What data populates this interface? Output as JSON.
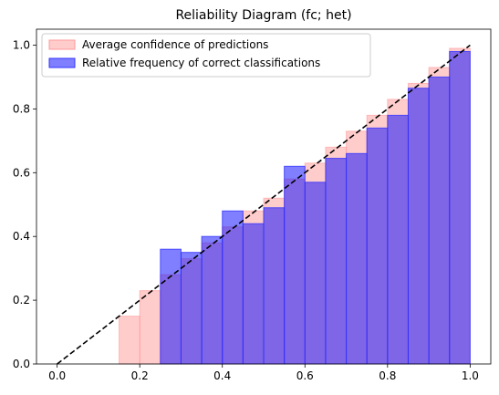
{
  "chart_data": {
    "type": "bar",
    "title": "Reliability Diagram (fc; het)",
    "xlabel": "",
    "ylabel": "",
    "xlim": [
      -0.05,
      1.05
    ],
    "ylim": [
      0,
      1.05
    ],
    "grid": false,
    "legend_position": "top-left",
    "bin_width": 0.05,
    "bin_left_edges": [
      0.0,
      0.05,
      0.1,
      0.15,
      0.2,
      0.25,
      0.3,
      0.35,
      0.4,
      0.45,
      0.5,
      0.55,
      0.6,
      0.65,
      0.7,
      0.75,
      0.8,
      0.85,
      0.9,
      0.95
    ],
    "x_ticks": [
      0.0,
      0.2,
      0.4,
      0.6,
      0.8,
      1.0
    ],
    "x_tick_labels": [
      "0.0",
      "0.2",
      "0.4",
      "0.6",
      "0.8",
      "1.0"
    ],
    "y_ticks": [
      0.0,
      0.2,
      0.4,
      0.6,
      0.8,
      1.0
    ],
    "y_tick_labels": [
      "0.0",
      "0.2",
      "0.4",
      "0.6",
      "0.8",
      "1.0"
    ],
    "diagonal": {
      "from": [
        0,
        0
      ],
      "to": [
        1,
        1
      ],
      "style": "dashed",
      "color": "#000000"
    },
    "series": [
      {
        "name": "Average confidence of predictions",
        "color": "#ff9999",
        "opacity": 0.5,
        "values": [
          0,
          0,
          0,
          0.15,
          0.23,
          0.28,
          0.33,
          0.38,
          0.43,
          0.48,
          0.52,
          0.58,
          0.63,
          0.68,
          0.73,
          0.78,
          0.83,
          0.88,
          0.93,
          0.99
        ]
      },
      {
        "name": "Relative frequency of correct classifications",
        "color": "#0000ff",
        "opacity": 0.5,
        "values": [
          0,
          0,
          0,
          0,
          0,
          0.36,
          0.35,
          0.4,
          0.48,
          0.44,
          0.49,
          0.62,
          0.57,
          0.645,
          0.66,
          0.74,
          0.78,
          0.865,
          0.9,
          0.98
        ]
      }
    ]
  }
}
